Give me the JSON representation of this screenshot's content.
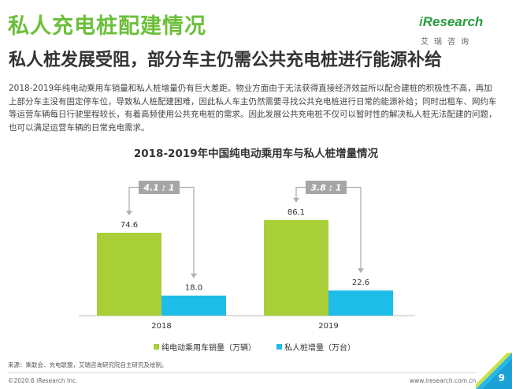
{
  "page": {
    "title": "私人充电桩配建情况",
    "subtitle": "私人桩发展受阻，部分车主仍需公共充电桩进行能源补给",
    "paragraph": "2018-2019年纯电动乘用车销量和私人桩增量仍有巨大差距。物业方面由于无法获得直接经济效益所以配合建桩的积极性不高，再加上部分车主没有固定停车位，导致私人桩配建困难，因此私人车主仍然需要寻找公共充电桩进行日常的能源补给；同时出租车、网约车等运营车辆每日行驶里程较长，有着高频使用公共充电桩的需求。因此发展公共充电桩不仅可以暂时性的解决私人桩无法配建的问题，也可以满足运营车辆的日常充电需求。",
    "source": "来源：乘联会、充电联盟，艾瑞咨询研究院自主研究及绘制。",
    "copyright": "©2020.6 iResearch Inc.",
    "website": "www.iresearch.com.cn",
    "page_number": "9"
  },
  "logo": {
    "name_prefix": "i",
    "name_rest": "Research",
    "chinese": "艾瑞咨询"
  },
  "colors": {
    "title_green": "#6cbf3a",
    "bar_green": "#a8cf38",
    "bar_blue": "#1ebde8",
    "ratio_box": "#a6a6a6"
  },
  "chart_data": {
    "type": "bar",
    "title": "2018-2019年中国纯电动乘用车与私人桩增量情况",
    "categories": [
      "2018",
      "2019"
    ],
    "series": [
      {
        "name": "纯电动乘用车销量（万辆）",
        "values": [
          74.6,
          86.1
        ]
      },
      {
        "name": "私人桩增量（万台）",
        "values": [
          18.0,
          22.6
        ]
      }
    ],
    "value_labels": [
      [
        "74.6",
        "86.1"
      ],
      [
        "18.0",
        "22.6"
      ]
    ],
    "ratios": [
      "4.1 : 1",
      "3.8 : 1"
    ],
    "ylim": [
      0,
      100
    ],
    "legend_position": "bottom",
    "grid": false
  }
}
